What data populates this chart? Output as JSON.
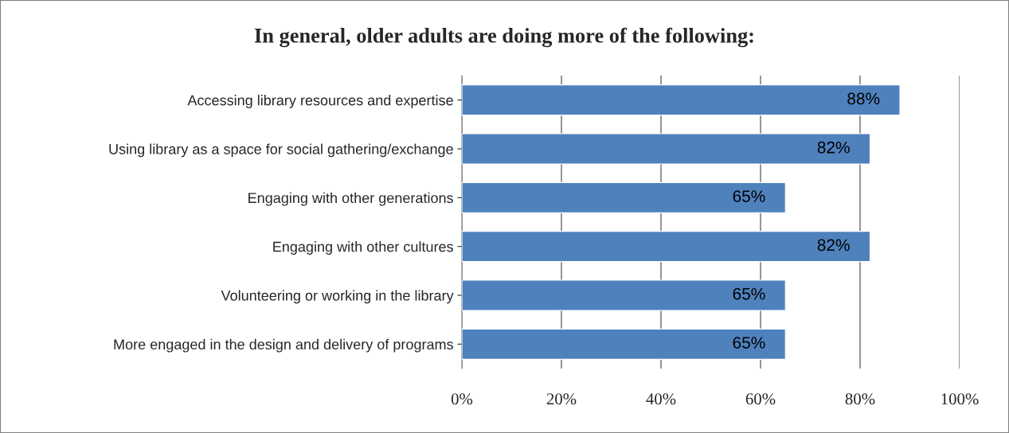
{
  "chart_data": {
    "type": "bar",
    "orientation": "horizontal",
    "title": "In general, older adults are doing more of the following:",
    "categories": [
      "Accessing library resources and expertise",
      "Using library as a space for social gathering/exchange",
      "Engaging with other generations",
      "Engaging with other cultures",
      "Volunteering or working in the library",
      "More engaged in the design and delivery of programs"
    ],
    "values": [
      88,
      82,
      65,
      82,
      65,
      65
    ],
    "value_labels": [
      "88%",
      "82%",
      "65%",
      "82%",
      "65%",
      "65%"
    ],
    "color": "#4f81bd",
    "xlim": [
      0,
      100
    ],
    "xticks": [
      {
        "value": 0,
        "label": "0%"
      },
      {
        "value": 20,
        "label": "20%"
      },
      {
        "value": 40,
        "label": "40%"
      },
      {
        "value": 60,
        "label": "60%"
      },
      {
        "value": 80,
        "label": "80%"
      },
      {
        "value": 100,
        "label": "100%"
      }
    ],
    "grid": "x",
    "legend": false
  }
}
